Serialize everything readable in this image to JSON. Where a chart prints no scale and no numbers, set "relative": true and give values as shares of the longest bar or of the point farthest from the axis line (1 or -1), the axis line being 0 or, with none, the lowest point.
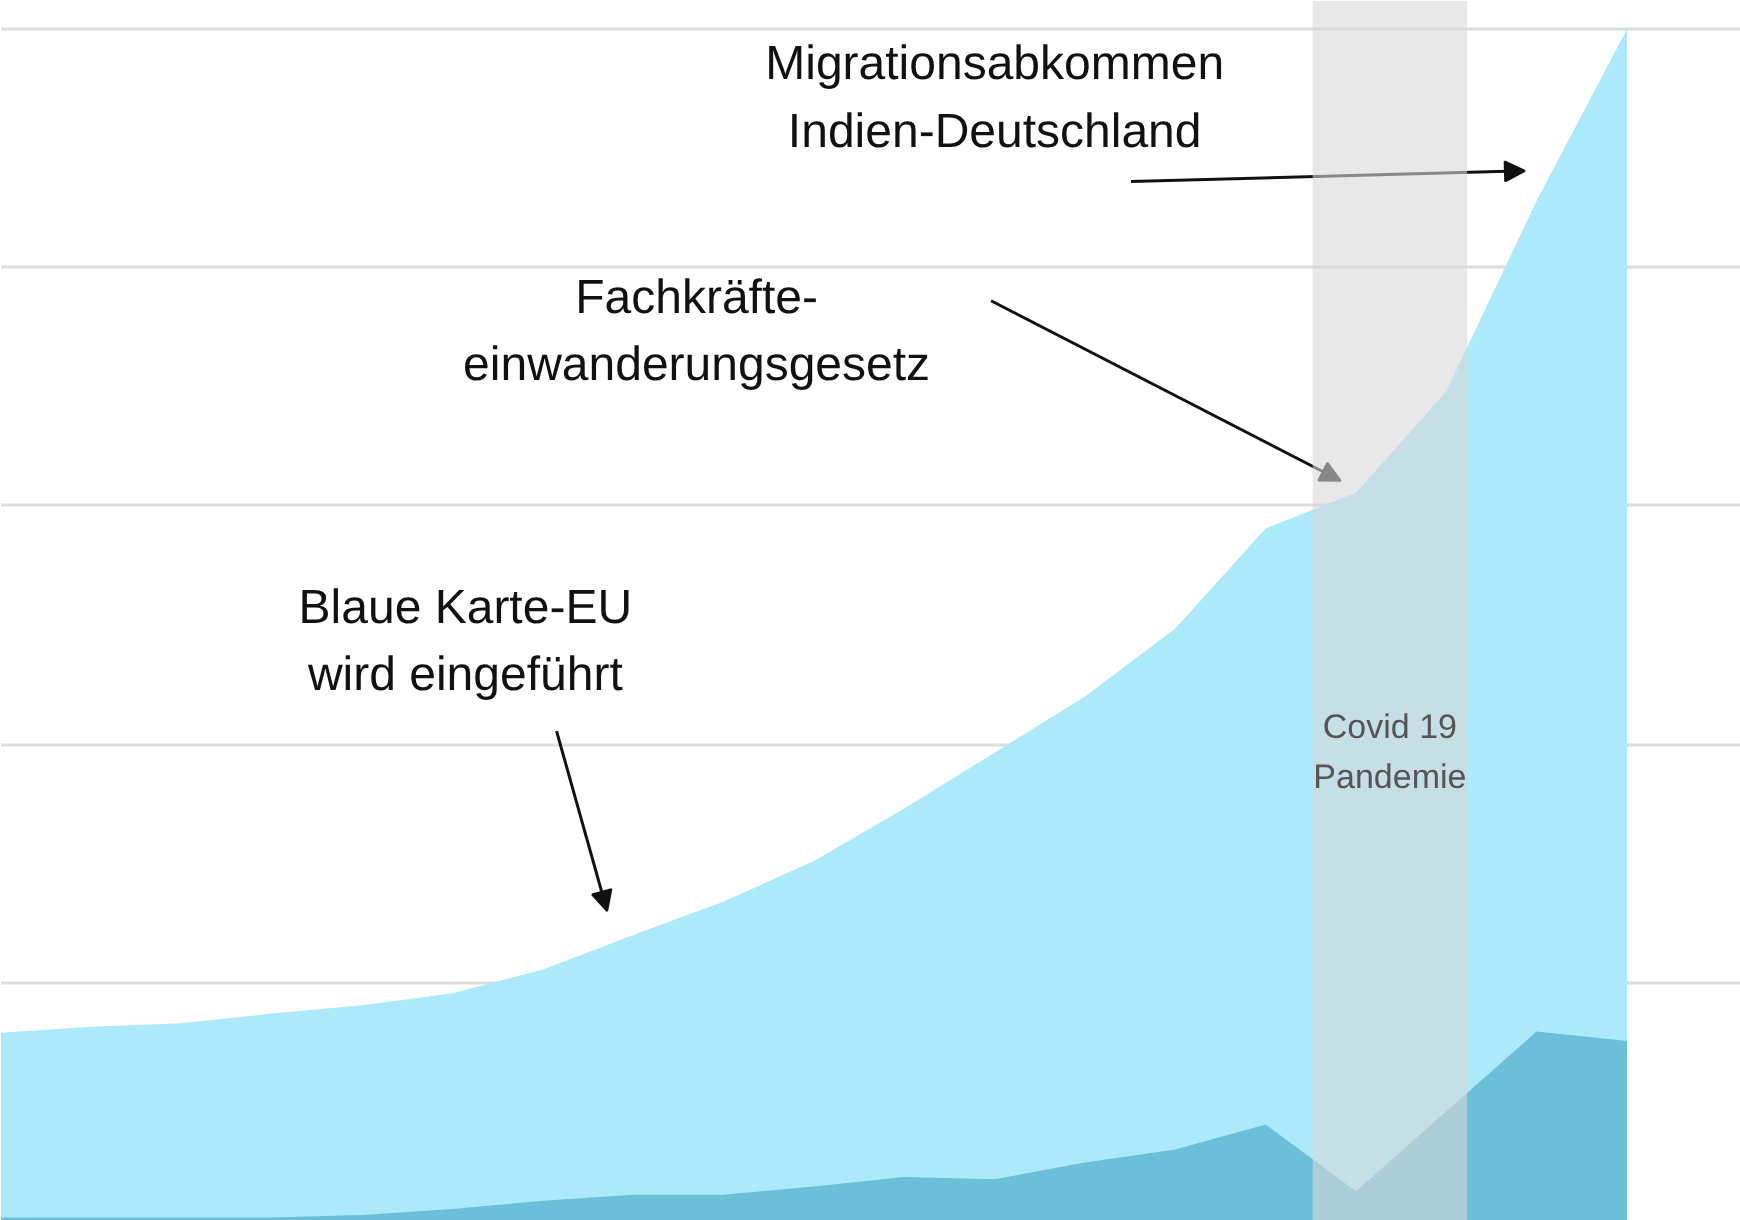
{
  "chart_data": {
    "type": "area",
    "relative": true,
    "categories": [
      null,
      null,
      null,
      null,
      null,
      null,
      null,
      null,
      null,
      null,
      null,
      null,
      null,
      null,
      null,
      null,
      null,
      null,
      null
    ],
    "series": [
      {
        "color": "#abe9fb",
        "values": [
          0.158,
          0.163,
          0.166,
          0.174,
          0.181,
          0.191,
          0.211,
          0.24,
          0.268,
          0.302,
          0.346,
          0.393,
          0.44,
          0.497,
          0.581,
          0.611,
          0.696,
          0.856,
          1
        ]
      },
      {
        "color": "#6bbfd8",
        "values": [
          0.003,
          0.003,
          0.003,
          0.003,
          0.005,
          0.01,
          0.017,
          0.022,
          0.022,
          0.029,
          0.037,
          0.035,
          0.049,
          0.06,
          0.081,
          0.025,
          0.092,
          0.159,
          0.151
        ]
      }
    ],
    "annotations": [
      "Migrationsabkommen\nIndien-Deutschland",
      "Fachkräfte-\neinwanderungsgesetz",
      "Blaue Karte-EU\nwird eingeführt",
      "Covid 19\nPandemie"
    ],
    "grid": "y"
  }
}
